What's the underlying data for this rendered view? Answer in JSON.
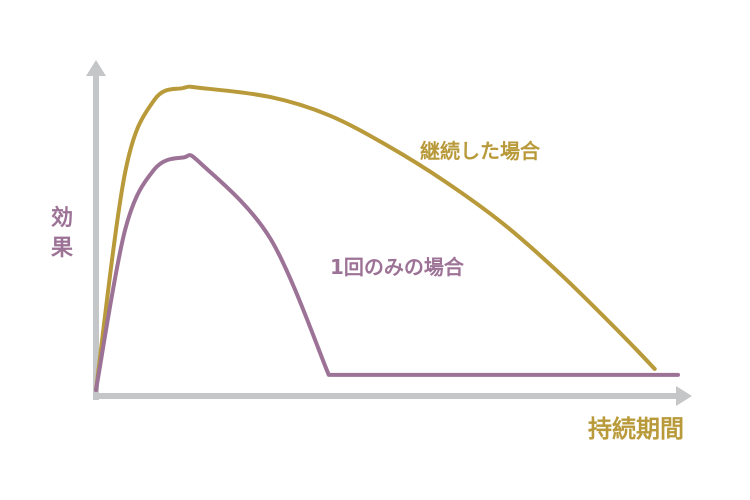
{
  "chart_data": {
    "type": "line",
    "xlabel": "持続期間",
    "ylabel": "効果",
    "grid": false,
    "legend": "none",
    "axis_color": "#c5c6c8",
    "x": [
      0,
      0.05,
      0.1,
      0.15,
      0.18,
      0.3,
      0.4,
      0.5,
      0.6,
      0.7,
      0.8,
      0.9,
      0.96,
      1.0
    ],
    "xlim": [
      0,
      1
    ],
    "ylim": [
      0,
      1
    ],
    "series": [
      {
        "name": "継続した場合",
        "color": "#b99a3a",
        "values": [
          0,
          0.72,
          0.96,
          1.0,
          1.0,
          0.97,
          0.91,
          0.81,
          0.69,
          0.55,
          0.38,
          0.19,
          0.07,
          null
        ]
      },
      {
        "name": "1回のみの場合",
        "color": "#9c7396",
        "values": [
          0,
          0.53,
          0.73,
          0.77,
          0.75,
          0.5,
          0.05,
          0.05,
          0.05,
          0.05,
          0.05,
          0.05,
          0.05,
          0.05
        ]
      }
    ]
  }
}
